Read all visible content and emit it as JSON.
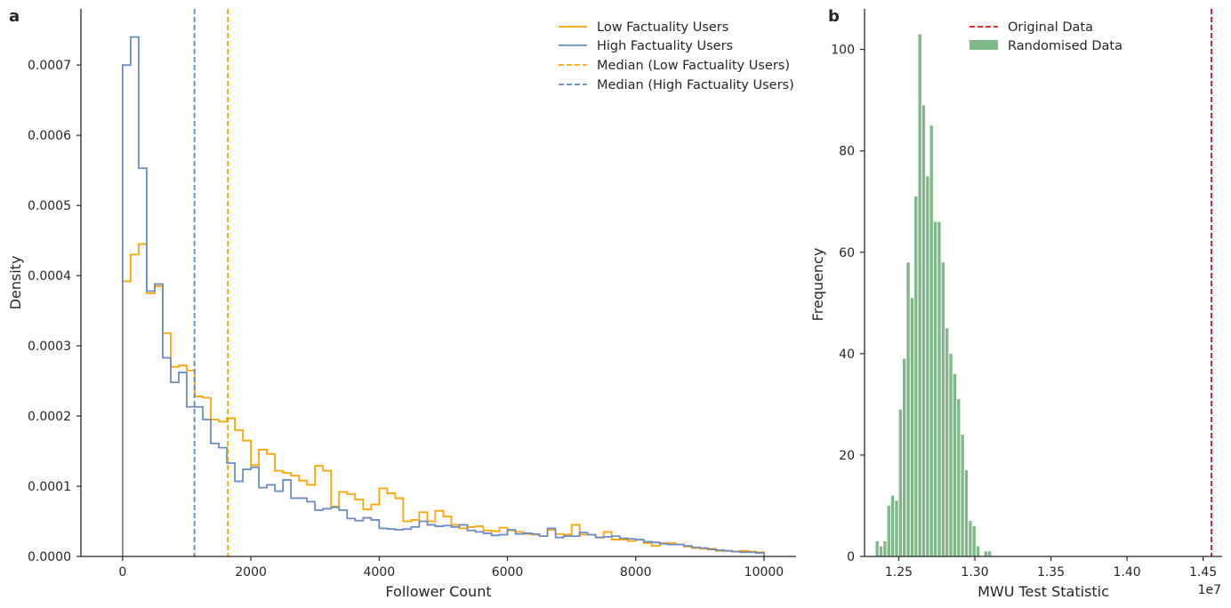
{
  "chart_data": [
    {
      "panel_label": "a",
      "type": "line",
      "subtype": "step-histogram",
      "xlabel": "Follower Count",
      "ylabel": "Density",
      "xlim": [
        -650,
        10500
      ],
      "ylim": [
        0,
        0.00078
      ],
      "xticks": [
        0,
        2000,
        4000,
        6000,
        8000,
        10000
      ],
      "xtick_labels": [
        "0",
        "2000",
        "4000",
        "6000",
        "8000",
        "10000"
      ],
      "yticks": [
        0,
        0.0001,
        0.0002,
        0.0003,
        0.0004,
        0.0005,
        0.0006,
        0.0007
      ],
      "ytick_labels": [
        "0.0000",
        "0.0001",
        "0.0002",
        "0.0003",
        "0.0004",
        "0.0005",
        "0.0006",
        "0.0007"
      ],
      "bin_edges_start": 0,
      "bin_width": 125,
      "legend_position": "top-right",
      "series": [
        {
          "name": "Low Factuality Users",
          "color": "#ffa500",
          "style": "solid",
          "values": [
            0.000392,
            0.00043,
            0.000445,
            0.000375,
            0.000385,
            0.000318,
            0.00027,
            0.000272,
            0.000265,
            0.000228,
            0.000226,
            0.000195,
            0.000192,
            0.000197,
            0.00018,
            0.000165,
            0.00013,
            0.000152,
            0.000146,
            0.000122,
            0.000119,
            0.000115,
            0.000108,
            0.000102,
            0.000129,
            0.000122,
            7.1e-05,
            9.2e-05,
            8.9e-05,
            8.1e-05,
            6.7e-05,
            7.4e-05,
            9.7e-05,
            9e-05,
            8.3e-05,
            5e-05,
            5.2e-05,
            6.3e-05,
            5e-05,
            6.5e-05,
            5.7e-05,
            4.5e-05,
            4e-05,
            4.2e-05,
            4.3e-05,
            3.7e-05,
            3.6e-05,
            4.1e-05,
            3.7e-05,
            3.5e-05,
            3.2e-05,
            3.1e-05,
            2.9e-05,
            3.8e-05,
            3.2e-05,
            3.1e-05,
            4.5e-05,
            3.1e-05,
            3.1e-05,
            2.7e-05,
            3.5e-05,
            2.4e-05,
            2.4e-05,
            2.2e-05,
            2.4e-05,
            1.9e-05,
            1.5e-05,
            1.9e-05,
            1.9e-05,
            1.7e-05,
            1.4e-05,
            1.2e-05,
            1.1e-05,
            1.1e-05,
            8e-06,
            8e-06,
            7e-06,
            8e-06,
            7e-06,
            6e-06
          ]
        },
        {
          "name": "High Factuality Users",
          "color": "#6b8cc4",
          "style": "solid",
          "values": [
            0.0007,
            0.00074,
            0.000553,
            0.000378,
            0.000388,
            0.000283,
            0.000248,
            0.000262,
            0.000213,
            0.000213,
            0.000195,
            0.000161,
            0.000155,
            0.000133,
            0.000107,
            0.000124,
            0.000127,
            9.8e-05,
            0.000102,
            9.3e-05,
            0.000109,
            8.3e-05,
            8.3e-05,
            7.8e-05,
            6.6e-05,
            6.8e-05,
            7e-05,
            6.6e-05,
            5.4e-05,
            5.1e-05,
            5.5e-05,
            5.2e-05,
            4e-05,
            3.9e-05,
            3.8e-05,
            3.9e-05,
            4.2e-05,
            5e-05,
            4.5e-05,
            4.3e-05,
            4.4e-05,
            4.2e-05,
            4.5e-05,
            3.7e-05,
            3.5e-05,
            3.3e-05,
            3e-05,
            3.1e-05,
            3.8e-05,
            3.2e-05,
            3.3e-05,
            3.2e-05,
            2.9e-05,
            4e-05,
            2.7e-05,
            2.9e-05,
            2.9e-05,
            3.4e-05,
            3.1e-05,
            2.7e-05,
            2.8e-05,
            2.9e-05,
            2.6e-05,
            2.5e-05,
            2.4e-05,
            2.1e-05,
            2e-05,
            1.8e-05,
            1.7e-05,
            1.7e-05,
            1.5e-05,
            1.3e-05,
            1.2e-05,
            1e-05,
            9e-06,
            8e-06,
            7e-06,
            6e-06,
            6e-06,
            5e-06
          ]
        },
        {
          "name": "Median (Low Factuality Users)",
          "color": "#ffa500",
          "style": "dashed",
          "x": 1640
        },
        {
          "name": "Median (High Factuality Users)",
          "color": "#5b8ab8",
          "style": "dashed",
          "x": 1120
        }
      ]
    },
    {
      "panel_label": "b",
      "type": "bar",
      "subtype": "histogram",
      "xlabel": "MWU Test Statistic",
      "ylabel": "Frequency",
      "offset_label": "1e7",
      "xlim": [
        1.2275,
        1.4625
      ],
      "ylim": [
        0,
        108
      ],
      "xticks": [
        1.25,
        1.3,
        1.35,
        1.4,
        1.45
      ],
      "xtick_labels": [
        "1.25",
        "1.30",
        "1.35",
        "1.40",
        "1.45"
      ],
      "yticks": [
        0,
        20,
        40,
        60,
        80,
        100
      ],
      "ytick_labels": [
        "0",
        "20",
        "40",
        "60",
        "80",
        "100"
      ],
      "bin_start": 1.2345,
      "bin_width": 0.00255,
      "legend_position": "top-center",
      "series": [
        {
          "name": "Randomised Data",
          "color": "#80b88a",
          "values": [
            3,
            2,
            3,
            10,
            12,
            11,
            29,
            39,
            58,
            51,
            71,
            103,
            89,
            75,
            85,
            66,
            66,
            58,
            45,
            40,
            36,
            31,
            24,
            17,
            7,
            6,
            2,
            0,
            1,
            1
          ]
        },
        {
          "name": "Original Data",
          "color": "#e01010",
          "style": "dashed",
          "x": 1.4555
        }
      ]
    }
  ]
}
